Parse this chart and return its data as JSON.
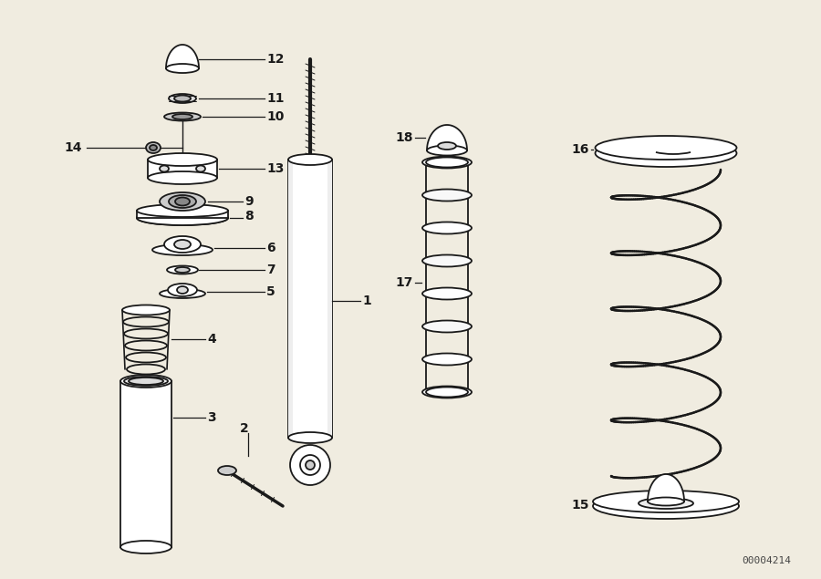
{
  "bg_color": "#f0ece0",
  "line_color": "#1a1a1a",
  "diagram_id": "00004214"
}
